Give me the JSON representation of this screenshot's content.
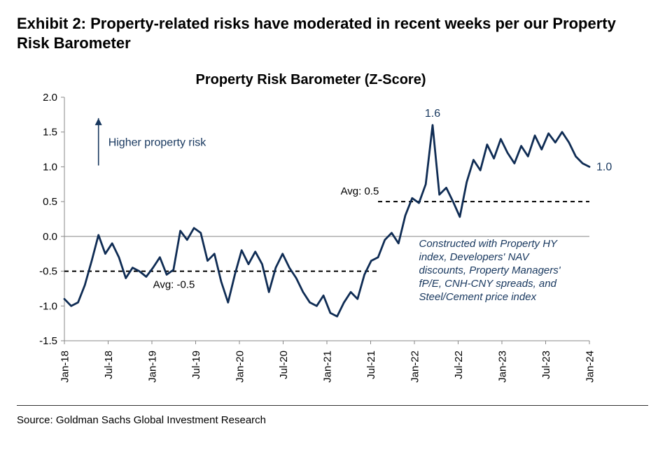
{
  "exhibit_title": "Exhibit 2: Property-related risks have moderated in recent weeks per our Property Risk Barometer",
  "source_text": "Source: Goldman Sachs Global Investment Research",
  "chart": {
    "type": "line",
    "title": "Property Risk Barometer (Z-Score)",
    "line_color": "#0f2c54",
    "line_width": 2.8,
    "background_color": "#ffffff",
    "ylim": [
      -1.5,
      2.0
    ],
    "ytick_step": 0.5,
    "yticks": [
      "-1.5",
      "-1.0",
      "-0.5",
      "0.0",
      "0.5",
      "1.0",
      "1.5",
      "2.0"
    ],
    "xlabels": [
      "Jan-18",
      "Jul-18",
      "Jan-19",
      "Jul-19",
      "Jan-20",
      "Jul-20",
      "Jan-21",
      "Jul-21",
      "Jan-22",
      "Jul-22",
      "Jan-23",
      "Jul-23",
      "Jan-24"
    ],
    "x_n_points": 78,
    "series": [
      -0.9,
      -1.0,
      -0.95,
      -0.7,
      -0.35,
      0.02,
      -0.25,
      -0.1,
      -0.3,
      -0.6,
      -0.45,
      -0.5,
      -0.58,
      -0.45,
      -0.3,
      -0.55,
      -0.48,
      0.08,
      -0.05,
      0.12,
      0.05,
      -0.35,
      -0.25,
      -0.65,
      -0.95,
      -0.55,
      -0.2,
      -0.4,
      -0.22,
      -0.4,
      -0.8,
      -0.45,
      -0.25,
      -0.45,
      -0.6,
      -0.8,
      -0.95,
      -1.0,
      -0.85,
      -1.1,
      -1.15,
      -0.95,
      -0.8,
      -0.9,
      -0.55,
      -0.35,
      -0.3,
      -0.05,
      0.05,
      -0.1,
      0.3,
      0.55,
      0.48,
      0.75,
      1.6,
      0.6,
      0.7,
      0.5,
      0.28,
      0.78,
      1.1,
      0.95,
      1.32,
      1.12,
      1.4,
      1.2,
      1.05,
      1.3,
      1.15,
      1.45,
      1.25,
      1.48,
      1.35,
      1.5,
      1.35,
      1.15,
      1.05,
      1.0
    ],
    "avg_lines": [
      {
        "label": "Avg: -0.5",
        "value": -0.5,
        "x_from": 0,
        "x_to": 46,
        "color": "#000000"
      },
      {
        "label": "Avg: 0.5",
        "value": 0.5,
        "x_from": 46,
        "x_to": 77,
        "color": "#000000"
      }
    ],
    "annotations": {
      "higher_risk_label": "Higher property risk",
      "higher_risk_color": "#17375e",
      "peak_label": "1.6",
      "peak_color": "#17375e",
      "peak_x_index": 54,
      "last_label": "1.0",
      "last_color": "#17375e",
      "note_lines": [
        "Constructed with Property HY",
        "index, Developers' NAV",
        "discounts, Property Managers'",
        "fP/E, CNH-CNY spreads, and",
        "Steel/Cement price index"
      ],
      "note_color": "#17375e"
    },
    "axis_color": "#888888",
    "tick_fontsize": 15,
    "title_fontsize": 20
  }
}
